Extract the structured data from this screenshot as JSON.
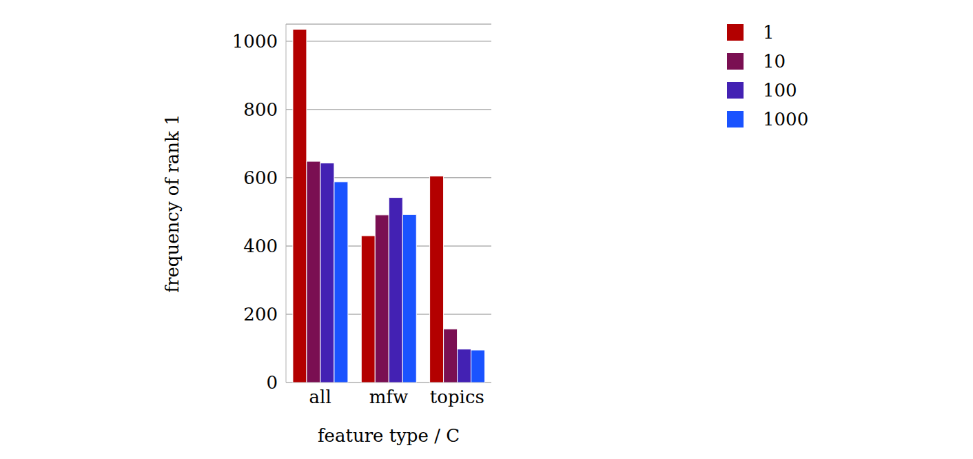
{
  "chart_data": {
    "type": "bar",
    "x_label": "feature type / C",
    "y_label": "frequency of rank 1",
    "categories": [
      "all",
      "mfw",
      "topics"
    ],
    "series": [
      {
        "name": "1",
        "color": "#b30000",
        "values": [
          1035,
          430,
          605
        ]
      },
      {
        "name": "10",
        "color": "#7a0f52",
        "values": [
          648,
          491,
          157
        ]
      },
      {
        "name": "100",
        "color": "#4321b3",
        "values": [
          643,
          542,
          98
        ]
      },
      {
        "name": "1000",
        "color": "#1a53ff",
        "values": [
          588,
          492,
          95
        ]
      }
    ],
    "ylim": [
      0,
      1050
    ],
    "yticks": [
      0,
      200,
      400,
      600,
      800,
      1000
    ],
    "grid": true,
    "legend": "upper right"
  }
}
